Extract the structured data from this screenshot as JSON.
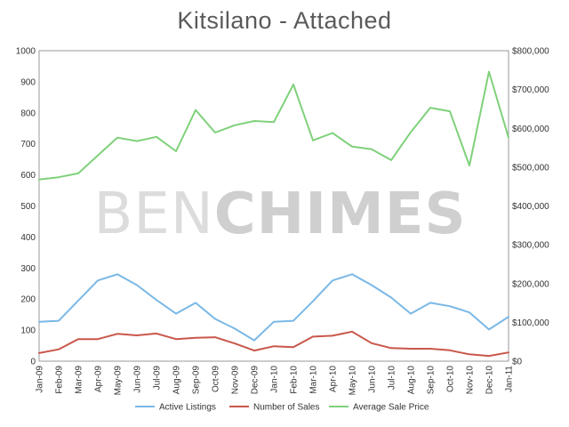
{
  "chart_data": {
    "type": "line",
    "title": "Kitsilano - Attached",
    "watermark": {
      "light": "BEN",
      "bold": "CHIMES"
    },
    "categories": [
      "Jan-09",
      "Feb-09",
      "Mar-09",
      "Apr-09",
      "May-09",
      "Jun-09",
      "Jul-09",
      "Aug-09",
      "Sep-09",
      "Oct-09",
      "Nov-09",
      "Dec-09",
      "Jan-10",
      "Feb-10",
      "Mar-10",
      "Apr-10",
      "May-10",
      "Jun-10",
      "Jul-10",
      "Aug-10",
      "Sep-10",
      "Oct-10",
      "Nov-10",
      "Dec-10",
      "Jan-11"
    ],
    "xlim": [
      0,
      24
    ],
    "y_left": {
      "ylim": [
        0,
        1000
      ],
      "ticks": [
        0,
        100,
        200,
        300,
        400,
        500,
        600,
        700,
        800,
        900,
        1000
      ],
      "tick_labels": [
        "0",
        "100",
        "200",
        "300",
        "400",
        "500",
        "600",
        "700",
        "800",
        "900",
        "1000"
      ]
    },
    "y_right": {
      "ylim": [
        0,
        800000
      ],
      "ticks": [
        0,
        100000,
        200000,
        300000,
        400000,
        500000,
        600000,
        700000,
        800000
      ],
      "tick_labels": [
        "$0",
        "$100,000",
        "$200,000",
        "$300,000",
        "$400,000",
        "$500,000",
        "$600,000",
        "$700,000",
        "$800,000"
      ]
    },
    "grid": false,
    "legend_position": "bottom",
    "series": [
      {
        "name": "Active Listings",
        "axis": "left",
        "color": "#7ab8e6",
        "values": [
          127,
          130,
          195,
          260,
          280,
          245,
          197,
          153,
          188,
          136,
          105,
          67,
          127,
          130,
          193,
          260,
          280,
          245,
          205,
          153,
          188,
          177,
          157,
          102,
          143
        ]
      },
      {
        "name": "Number of Sales",
        "axis": "left",
        "color": "#c9574a",
        "values": [
          26,
          38,
          71,
          71,
          88,
          83,
          89,
          71,
          75,
          77,
          57,
          34,
          48,
          45,
          79,
          82,
          95,
          58,
          42,
          40,
          40,
          35,
          22,
          17,
          28
        ]
      },
      {
        "name": "Average Sale Price",
        "axis": "right",
        "color": "#7fd17a",
        "values": [
          468000,
          474000,
          484000,
          530000,
          576000,
          567000,
          578000,
          541000,
          647000,
          589000,
          608000,
          619000,
          616000,
          713000,
          569000,
          588000,
          553000,
          546000,
          518000,
          590000,
          653000,
          644000,
          504000,
          746000,
          576000
        ]
      }
    ]
  }
}
